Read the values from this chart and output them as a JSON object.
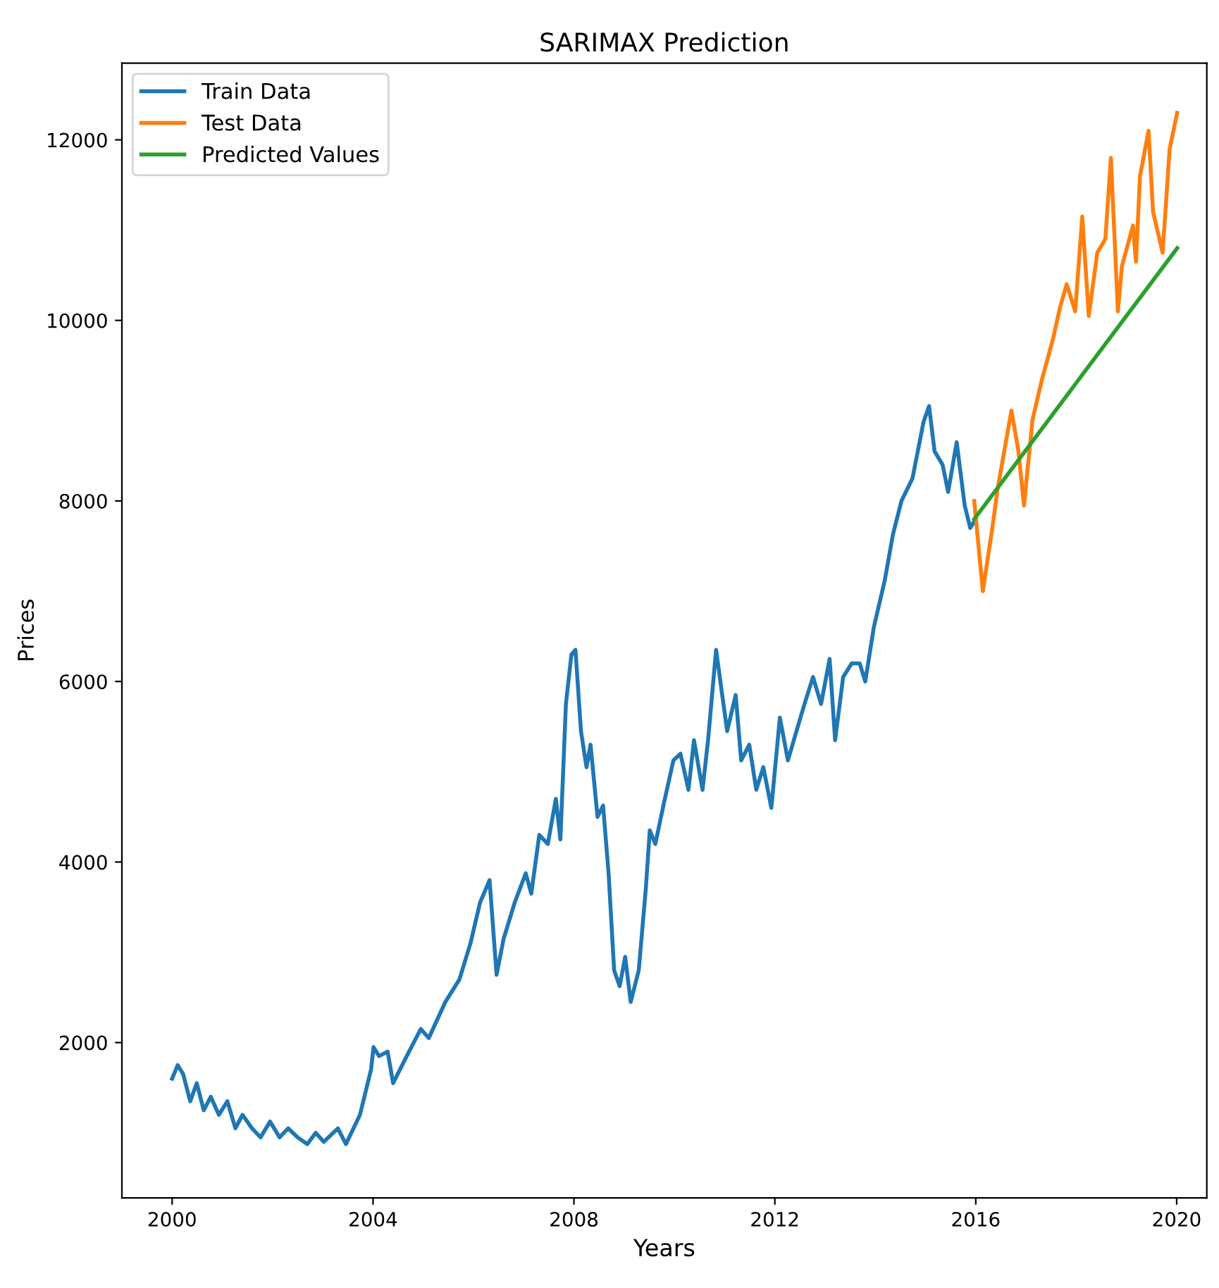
{
  "chart_data": {
    "type": "line",
    "title": "SARIMAX Prediction",
    "xlabel": "Years",
    "ylabel": "Prices",
    "xlim": [
      1999.0,
      2020.6
    ],
    "ylim": [
      280,
      12850
    ],
    "xticks": [
      2000,
      2004,
      2008,
      2012,
      2016,
      2020
    ],
    "yticks": [
      2000,
      4000,
      6000,
      8000,
      10000,
      12000
    ],
    "legend": "top left",
    "grid": false,
    "series": [
      {
        "name": "Train Data",
        "color": "#1f77b4",
        "x": [
          2000.0,
          2000.11,
          2000.22,
          2000.36,
          2000.49,
          2000.63,
          2000.77,
          2000.93,
          2001.1,
          2001.26,
          2001.4,
          2001.59,
          2001.76,
          2001.95,
          2002.14,
          2002.31,
          2002.5,
          2002.69,
          2002.86,
          2003.02,
          2003.3,
          2003.46,
          2003.74,
          2003.96,
          2004.01,
          2004.12,
          2004.29,
          2004.4,
          2004.67,
          2004.95,
          2005.11,
          2005.44,
          2005.72,
          2005.94,
          2006.13,
          2006.32,
          2006.46,
          2006.6,
          2006.82,
          2007.04,
          2007.15,
          2007.31,
          2007.48,
          2007.64,
          2007.73,
          2007.84,
          2007.95,
          2008.03,
          2008.14,
          2008.25,
          2008.33,
          2008.47,
          2008.58,
          2008.69,
          2008.8,
          2008.91,
          2009.02,
          2009.13,
          2009.21,
          2009.29,
          2009.43,
          2009.51,
          2009.62,
          2009.79,
          2009.98,
          2010.12,
          2010.28,
          2010.39,
          2010.56,
          2010.67,
          2010.83,
          2010.94,
          2011.05,
          2011.22,
          2011.33,
          2011.49,
          2011.63,
          2011.77,
          2011.93,
          2012.1,
          2012.26,
          2012.43,
          2012.59,
          2012.76,
          2012.92,
          2013.09,
          2013.2,
          2013.36,
          2013.53,
          2013.69,
          2013.8,
          2013.97,
          2014.19,
          2014.35,
          2014.52,
          2014.74,
          2014.96,
          2015.07,
          2015.18,
          2015.34,
          2015.45,
          2015.62,
          2015.78,
          2015.89,
          2016.0
        ],
        "values": [
          1600,
          1750,
          1650,
          1350,
          1550,
          1250,
          1400,
          1200,
          1350,
          1050,
          1200,
          1050,
          950,
          1125,
          950,
          1050,
          950,
          875,
          1000,
          900,
          1050,
          875,
          1200,
          1700,
          1950,
          1850,
          1900,
          1550,
          1850,
          2150,
          2050,
          2450,
          2700,
          3100,
          3550,
          3800,
          2750,
          3150,
          3550,
          3875,
          3650,
          4300,
          4200,
          4700,
          4250,
          5750,
          6300,
          6350,
          5450,
          5050,
          5300,
          4500,
          4625,
          3875,
          2800,
          2625,
          2950,
          2450,
          2625,
          2800,
          3700,
          4350,
          4200,
          4650,
          5125,
          5200,
          4800,
          5350,
          4800,
          5350,
          6350,
          5900,
          5450,
          5850,
          5125,
          5300,
          4800,
          5050,
          4600,
          5600,
          5125,
          5450,
          5750,
          6050,
          5750,
          6250,
          5350,
          6050,
          6200,
          6200,
          6000,
          6600,
          7125,
          7625,
          8000,
          8250,
          8875,
          9050,
          8550,
          8400,
          8100,
          8650,
          7950,
          7700,
          7800
        ]
      },
      {
        "name": "Test Data",
        "color": "#ff7f0e",
        "x": [
          2015.97,
          2016.14,
          2016.33,
          2016.44,
          2016.63,
          2016.71,
          2016.85,
          2016.96,
          2017.13,
          2017.32,
          2017.54,
          2017.68,
          2017.81,
          2017.98,
          2018.12,
          2018.25,
          2018.42,
          2018.58,
          2018.69,
          2018.83,
          2018.91,
          2019.13,
          2019.19,
          2019.27,
          2019.44,
          2019.53,
          2019.72,
          2019.86,
          2020.01
        ],
        "values": [
          8000,
          7000,
          7700,
          8150,
          8750,
          9000,
          8550,
          7950,
          8900,
          9350,
          9800,
          10150,
          10400,
          10100,
          11150,
          10050,
          10750,
          10900,
          11800,
          10100,
          10600,
          11050,
          10650,
          11600,
          12100,
          11200,
          10750,
          11900,
          12300
        ]
      },
      {
        "name": "Predicted Values",
        "color": "#2ca02c",
        "x": [
          2015.97,
          2020.01
        ],
        "values": [
          7800,
          10800
        ]
      }
    ]
  }
}
